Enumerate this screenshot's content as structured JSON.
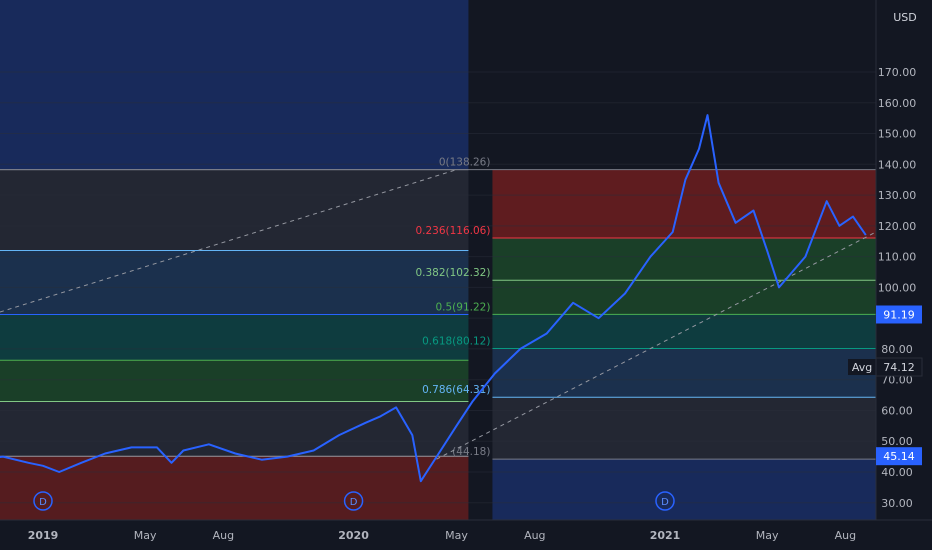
{
  "currency": "USD",
  "colors": {
    "background": "#131722",
    "price_line": "#2962ff",
    "axis_text": "#b2b5be",
    "zone_blue": "#1e3a8a",
    "zone_red": "#7a1f1f"
  },
  "chart_data": {
    "type": "line",
    "x_ticks": [
      "2019",
      "May",
      "Aug",
      "2020",
      "May",
      "Aug",
      "2021",
      "May",
      "Aug"
    ],
    "ylim": [
      22,
      172
    ],
    "y_ticks": [
      "30.00",
      "40.00",
      "50.00",
      "60.00",
      "70.00",
      "80.00",
      "90.00",
      "100.00",
      "110.00",
      "120.00",
      "130.00",
      "140.00",
      "150.00",
      "160.00",
      "170.00"
    ],
    "series": [
      {
        "x": [
          "2018-10-15",
          "2018-11-15",
          "2018-12-15",
          "2019-01-01",
          "2019-01-20",
          "2019-02-15",
          "2019-03-15",
          "2019-04-15",
          "2019-05-15",
          "2019-06-01",
          "2019-06-15",
          "2019-07-15",
          "2019-08-15",
          "2019-09-15",
          "2019-10-15",
          "2019-11-15",
          "2019-12-15",
          "2020-01-15",
          "2020-02-01",
          "2020-02-20",
          "2020-03-10",
          "2020-03-20",
          "2020-04-10",
          "2020-05-01",
          "2020-05-20",
          "2020-06-15",
          "2020-07-15",
          "2020-08-15",
          "2020-09-15",
          "2020-10-15",
          "2020-11-15",
          "2020-12-15",
          "2021-01-10",
          "2021-01-25",
          "2021-02-10",
          "2021-02-20",
          "2021-03-05",
          "2021-03-25",
          "2021-04-15",
          "2021-05-01",
          "2021-05-15",
          "2021-06-15",
          "2021-07-10",
          "2021-07-25",
          "2021-08-10",
          "2021-08-25"
        ],
        "values": [
          44,
          45,
          43,
          42,
          40,
          43,
          46,
          48,
          48,
          43,
          47,
          49,
          46,
          44,
          45,
          47,
          52,
          56,
          58,
          61,
          52,
          37,
          46,
          55,
          63,
          72,
          80,
          85,
          95,
          90,
          98,
          110,
          118,
          135,
          145,
          156,
          134,
          121,
          125,
          112,
          100,
          110,
          128,
          120,
          123,
          117
        ]
      }
    ],
    "fib_levels": [
      {
        "label": "0(138.26)",
        "value": 138.26,
        "color": "#787b86"
      },
      {
        "label": "0.236(116.06)",
        "value": 116.06,
        "color": "#f23645"
      },
      {
        "label": "0.382(102.32)",
        "value": 102.32,
        "color": "#81c784"
      },
      {
        "label": "0.5(91.22)",
        "value": 91.22,
        "color": "#4caf50"
      },
      {
        "label": "0.618(80.12)",
        "value": 80.12,
        "color": "#089981"
      },
      {
        "label": "0.786(64.31)",
        "value": 64.31,
        "color": "#64b5f6"
      },
      {
        "label": "(44.18)",
        "value": 44.18,
        "color": "#787b86"
      }
    ],
    "old_fib_levels": [
      138.26,
      112.0,
      91.2,
      76.3,
      62.9,
      45.1
    ],
    "price_badges": [
      {
        "label": "91.19",
        "value": 91.19
      },
      {
        "label": "74.12",
        "value": 74.12,
        "prefix": "Avg"
      },
      {
        "label": "45.14",
        "value": 45.14
      }
    ],
    "dividend_marker": "D"
  }
}
